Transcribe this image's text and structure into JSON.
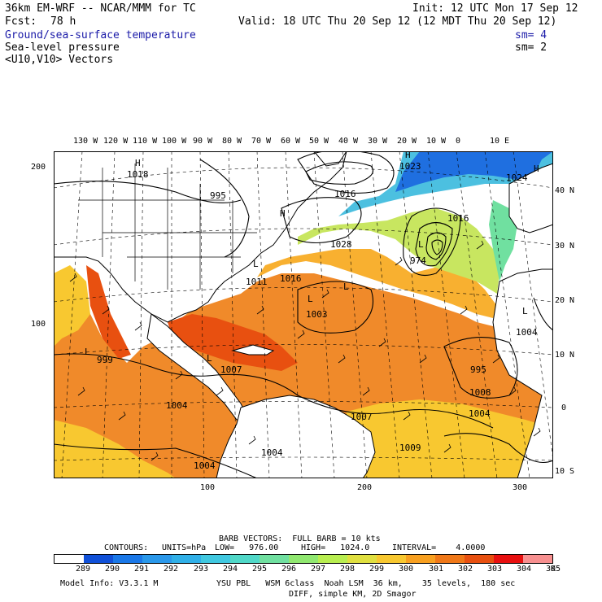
{
  "header": {
    "model_line": "36km EM-WRF -- NCAR/MMM for TC",
    "init_line": "Init: 12 UTC Mon 17 Sep 12",
    "fcst_label": "Fcst:",
    "fcst_value": "78 h",
    "valid_line": "Valid: 18 UTC Thu 20 Sep 12 (12 MDT Thu 20 Sep 12)",
    "field1": "Ground/sea-surface temperature",
    "field1_sm": "sm= 4",
    "field2": "Sea-level pressure",
    "field2_sm": "sm= 2",
    "field3": "<U10,V10> Vectors"
  },
  "axes": {
    "lon_labels": [
      "130 W",
      "120 W",
      "110 W",
      "100 W",
      "90 W",
      "80 W",
      "70 W",
      "60 W",
      "50 W",
      "40 W",
      "30 W",
      "20 W",
      "10 W",
      "0",
      "10 E"
    ],
    "lat_labels": [
      "40 N",
      "30 N",
      "20 N",
      "10 N",
      "0",
      "10 S"
    ],
    "grid_left": [
      "200",
      "100"
    ],
    "grid_bottom": [
      "100",
      "200",
      "300"
    ]
  },
  "map_labels": {
    "pressure": [
      "1018",
      "995",
      "1016",
      "1023",
      "1024",
      "1028",
      "1016",
      "974",
      "1011",
      "1016",
      "1003",
      "1004",
      "999",
      "1007",
      "995",
      "1008",
      "1004",
      "1007",
      "1009",
      "1004",
      "1004",
      "1004"
    ],
    "highs_lows": [
      "H",
      "H",
      "H",
      "H",
      "L",
      "L",
      "L",
      "L",
      "L",
      "L",
      "L"
    ]
  },
  "footer": {
    "barb_line": "BARB VECTORS:  FULL BARB = 10 kts",
    "contours_label": "CONTOURS:",
    "units": "UNITS=hPa",
    "low": "LOW=   976.00",
    "high": "HIGH=   1024.0",
    "interval": "INTERVAL=    4.0000",
    "colorbar_ticks": [
      "289",
      "290",
      "291",
      "292",
      "293",
      "294",
      "295",
      "296",
      "297",
      "298",
      "299",
      "300",
      "301",
      "302",
      "303",
      "304",
      "305"
    ],
    "colorbar_unit": "K",
    "model_info": "Model Info: V3.3.1 M",
    "physics": "YSU PBL   WSM 6class  Noah LSM  36 km,    35 levels,  180 sec",
    "diffusion": "DIFF, simple KM, 2D Smagor"
  },
  "colors": {
    "colorbar": [
      "#ffffff",
      "#1050d8",
      "#1a78e8",
      "#2a98ea",
      "#30b0e8",
      "#40c8e0",
      "#50d8c8",
      "#70e0a0",
      "#90e870",
      "#b8ee50",
      "#e0e040",
      "#f8c830",
      "#f8a020",
      "#f07818",
      "#e85010",
      "#e81010",
      "#f89090"
    ]
  }
}
